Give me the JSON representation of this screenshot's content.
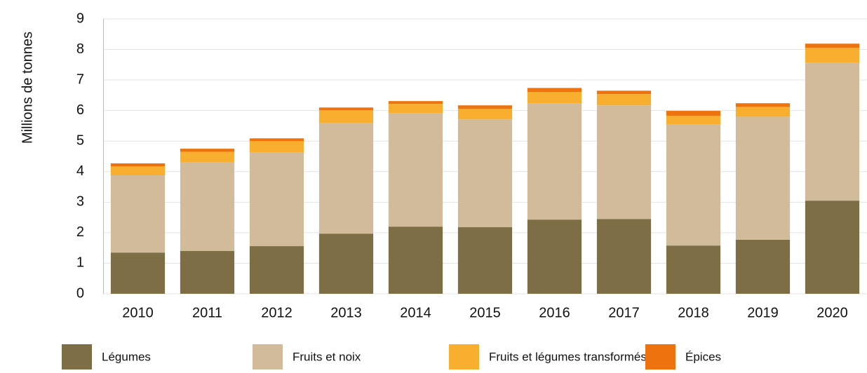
{
  "chart_data": {
    "type": "stacked_bar",
    "y_label": "Millions de tonnes",
    "categories": [
      "2010",
      "2011",
      "2012",
      "2013",
      "2014",
      "2015",
      "2016",
      "2017",
      "2018",
      "2019",
      "2020"
    ],
    "series": [
      {
        "name": "Légumes",
        "color": "#7d6e45",
        "values": [
          1.35,
          1.4,
          1.56,
          1.97,
          2.2,
          2.18,
          2.43,
          2.45,
          1.58,
          1.77,
          3.05
        ]
      },
      {
        "name": "Fruits et noix",
        "color": "#d1bb9a",
        "values": [
          2.53,
          2.9,
          3.07,
          3.63,
          3.72,
          3.53,
          3.81,
          3.72,
          3.97,
          4.03,
          4.52
        ]
      },
      {
        "name": "Fruits et légumes transformés",
        "color": "#f8af30",
        "values": [
          0.29,
          0.35,
          0.37,
          0.41,
          0.3,
          0.35,
          0.37,
          0.37,
          0.28,
          0.32,
          0.48
        ]
      },
      {
        "name": "Épices",
        "color": "#ee730e",
        "values": [
          0.1,
          0.1,
          0.09,
          0.09,
          0.09,
          0.11,
          0.13,
          0.11,
          0.16,
          0.12,
          0.14
        ]
      }
    ],
    "ylim": [
      0,
      9
    ],
    "yticks": [
      0,
      1,
      2,
      3,
      4,
      5,
      6,
      7,
      8,
      9
    ],
    "grid": true,
    "legend": "bottom"
  }
}
